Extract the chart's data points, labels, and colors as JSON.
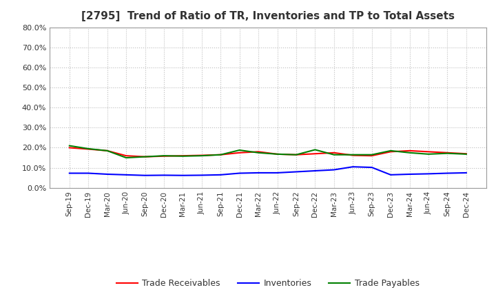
{
  "title": "[2795]  Trend of Ratio of TR, Inventories and TP to Total Assets",
  "x_labels": [
    "Sep-19",
    "Dec-19",
    "Mar-20",
    "Jun-20",
    "Sep-20",
    "Dec-20",
    "Mar-21",
    "Jun-21",
    "Sep-21",
    "Dec-21",
    "Mar-22",
    "Jun-22",
    "Sep-22",
    "Dec-22",
    "Mar-23",
    "Jun-23",
    "Sep-23",
    "Dec-23",
    "Mar-24",
    "Jun-24",
    "Sep-24",
    "Dec-24"
  ],
  "trade_receivables": [
    0.2,
    0.193,
    0.185,
    0.16,
    0.155,
    0.158,
    0.16,
    0.162,
    0.165,
    0.175,
    0.18,
    0.168,
    0.165,
    0.17,
    0.175,
    0.162,
    0.16,
    0.18,
    0.185,
    0.18,
    0.175,
    0.17
  ],
  "inventories": [
    0.073,
    0.073,
    0.068,
    0.065,
    0.062,
    0.063,
    0.062,
    0.063,
    0.065,
    0.073,
    0.075,
    0.075,
    0.08,
    0.085,
    0.09,
    0.105,
    0.102,
    0.065,
    0.068,
    0.07,
    0.073,
    0.075
  ],
  "trade_payables": [
    0.21,
    0.195,
    0.185,
    0.15,
    0.155,
    0.16,
    0.158,
    0.16,
    0.165,
    0.188,
    0.175,
    0.168,
    0.165,
    0.19,
    0.165,
    0.165,
    0.165,
    0.185,
    0.175,
    0.168,
    0.172,
    0.168
  ],
  "tr_color": "#ff0000",
  "inv_color": "#0000ff",
  "tp_color": "#008000",
  "ylim": [
    0.0,
    0.8
  ],
  "yticks": [
    0.0,
    0.1,
    0.2,
    0.3,
    0.4,
    0.5,
    0.6,
    0.7,
    0.8
  ],
  "background_color": "#ffffff",
  "grid_color": "#bbbbbb",
  "legend_labels": [
    "Trade Receivables",
    "Inventories",
    "Trade Payables"
  ]
}
